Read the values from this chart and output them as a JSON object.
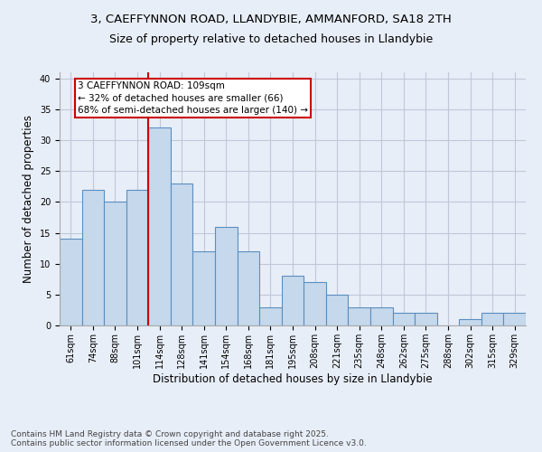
{
  "title_line1": "3, CAEFFYNNON ROAD, LLANDYBIE, AMMANFORD, SA18 2TH",
  "title_line2": "Size of property relative to detached houses in Llandybie",
  "xlabel": "Distribution of detached houses by size in Llandybie",
  "ylabel": "Number of detached properties",
  "categories": [
    "61sqm",
    "74sqm",
    "88sqm",
    "101sqm",
    "114sqm",
    "128sqm",
    "141sqm",
    "154sqm",
    "168sqm",
    "181sqm",
    "195sqm",
    "208sqm",
    "221sqm",
    "235sqm",
    "248sqm",
    "262sqm",
    "275sqm",
    "288sqm",
    "302sqm",
    "315sqm",
    "329sqm"
  ],
  "values": [
    14,
    22,
    20,
    22,
    32,
    23,
    12,
    16,
    12,
    3,
    8,
    7,
    5,
    3,
    3,
    2,
    2,
    0,
    1,
    2,
    2
  ],
  "bar_color": "#c5d8ec",
  "bar_edge_color": "#5a8fc0",
  "bar_edge_width": 0.8,
  "vline_x": 3.5,
  "vline_color": "#cc0000",
  "vline_label_title": "3 CAEFFYNNON ROAD: 109sqm",
  "vline_label_line2": "← 32% of detached houses are smaller (66)",
  "vline_label_line3": "68% of semi-detached houses are larger (140) →",
  "annotation_box_color": "#cc0000",
  "ylim": [
    0,
    41
  ],
  "yticks": [
    0,
    5,
    10,
    15,
    20,
    25,
    30,
    35,
    40
  ],
  "grid_color": "#c0c8d8",
  "background_color": "#e8eef8",
  "footer_line1": "Contains HM Land Registry data © Crown copyright and database right 2025.",
  "footer_line2": "Contains public sector information licensed under the Open Government Licence v3.0.",
  "title_fontsize": 9.5,
  "title2_fontsize": 9,
  "axis_label_fontsize": 8.5,
  "tick_fontsize": 7,
  "footer_fontsize": 6.5,
  "annot_fontsize": 7.5
}
